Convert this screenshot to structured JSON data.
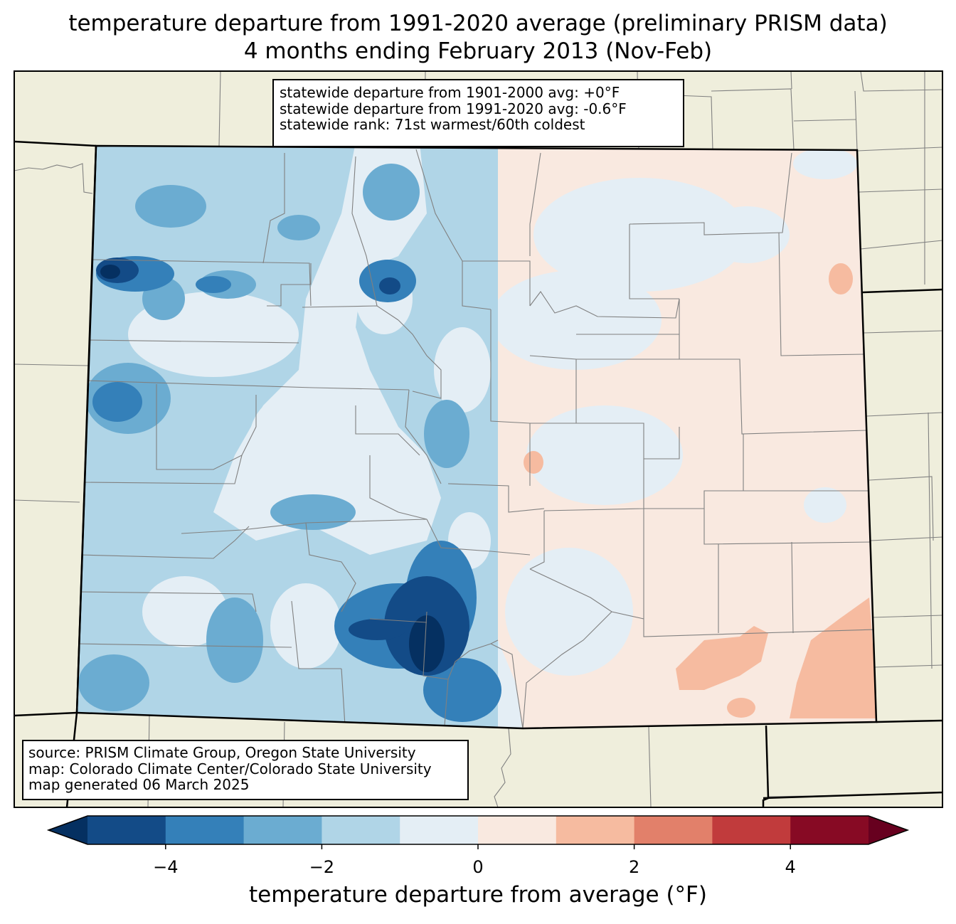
{
  "title_line1": "temperature departure from 1991-2020 average (preliminary PRISM data)",
  "title_line2": "4 months ending February 2013 (Nov-Feb)",
  "stats": {
    "line1": "statewide departure from 1901-2000 avg: +0°F",
    "line2": "statewide departure from 1991-2020 avg: -0.6°F",
    "line3": "statewide rank: 71st warmest/60th coldest"
  },
  "credits": {
    "line1": "source: PRISM Climate Group, Oregon State University",
    "line2": "map: Colorado Climate Center/Colorado State University",
    "line3": "map generated 06 March 2025"
  },
  "colorbar": {
    "label": "temperature departure from average (°F)",
    "ticks": [
      "−4",
      "−2",
      "0",
      "2",
      "4"
    ],
    "tick_values": [
      -4,
      -2,
      0,
      2,
      4
    ],
    "range": [
      -5,
      5
    ],
    "bins": [
      {
        "from": -5,
        "to": -4,
        "color": "#134b87"
      },
      {
        "from": -4,
        "to": -3,
        "color": "#3480b9"
      },
      {
        "from": -3,
        "to": -2,
        "color": "#6bacd1"
      },
      {
        "from": -2,
        "to": -1,
        "color": "#b0d5e7"
      },
      {
        "from": -1,
        "to": 0,
        "color": "#e4eef5"
      },
      {
        "from": 0,
        "to": 1,
        "color": "#f9e9e0"
      },
      {
        "from": 1,
        "to": 2,
        "color": "#f6bba0"
      },
      {
        "from": 2,
        "to": 3,
        "color": "#e2806a"
      },
      {
        "from": 3,
        "to": 4,
        "color": "#c13b3c"
      },
      {
        "from": 4,
        "to": 5,
        "color": "#870a24"
      }
    ],
    "under_color": "#053061",
    "over_color": "#67001f"
  },
  "colors": {
    "land": "#efeedc",
    "county_line": "#808080",
    "state_line": "#000000"
  }
}
